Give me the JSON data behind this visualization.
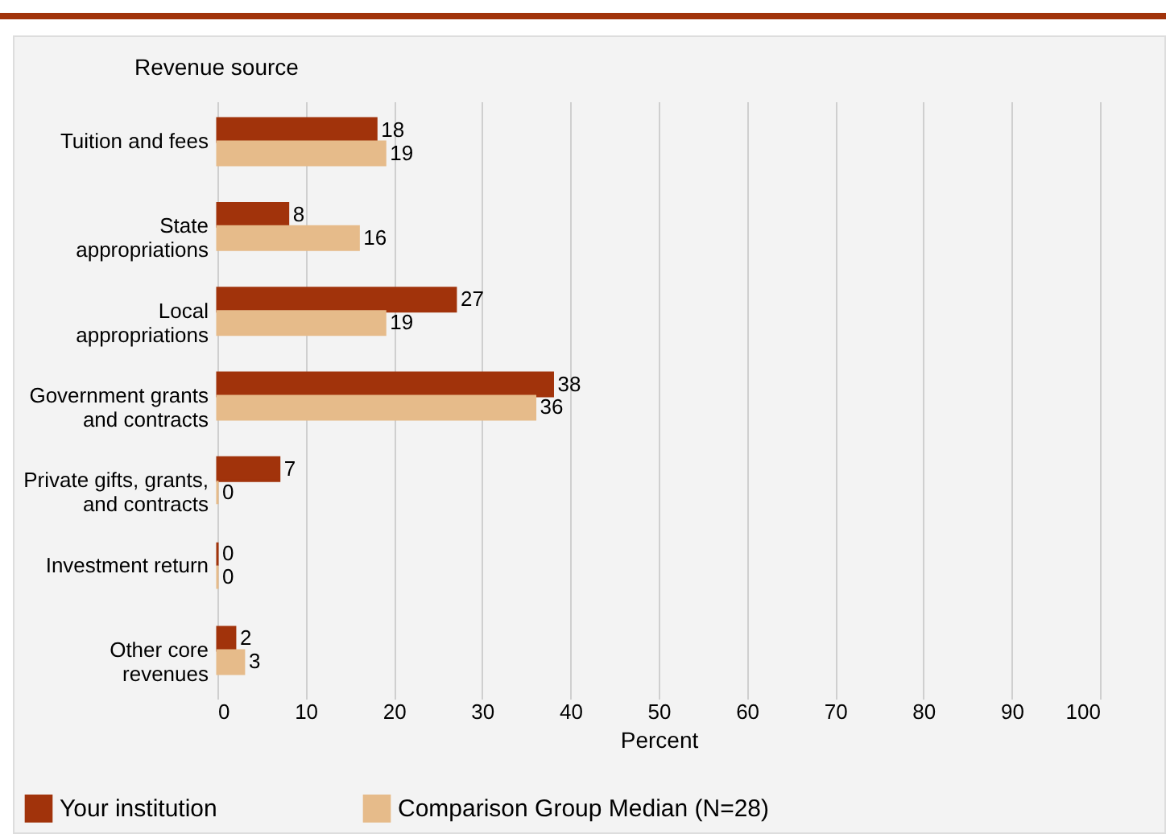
{
  "chart_data": {
    "type": "bar",
    "orientation": "horizontal",
    "ylabel": "Revenue source",
    "xlabel": "Percent",
    "categories": [
      "Tuition and fees",
      "State\nappropriations",
      "Local\nappropriations",
      "Government grants\nand contracts",
      "Private gifts, grants,\nand contracts",
      "Investment return",
      "Other core\nrevenues"
    ],
    "series": [
      {
        "name": "Your institution",
        "color": "#a1330b",
        "values": [
          18,
          8,
          27,
          38,
          7,
          0,
          2
        ]
      },
      {
        "name": "Comparison Group Median (N=28)",
        "color": "#e6bb8a",
        "values": [
          19,
          16,
          19,
          36,
          0,
          0,
          3
        ]
      }
    ],
    "xlim": [
      0,
      100
    ],
    "xticks": [
      0,
      10,
      20,
      30,
      40,
      50,
      60,
      70,
      80,
      90,
      100
    ],
    "grid": "x",
    "data_labels": true,
    "legend": "bottom"
  }
}
